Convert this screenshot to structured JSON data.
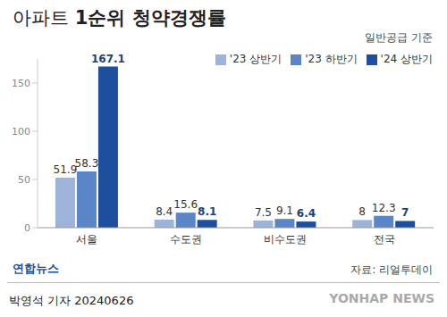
{
  "chart_data": {
    "type": "bar",
    "title": "아파트 1순위 청약경쟁률",
    "subtitle": "일반공급 기준",
    "categories": [
      "서울",
      "수도권",
      "비수도권",
      "전국"
    ],
    "series": [
      {
        "name": "'23 상반기",
        "color": "#9db3d9",
        "values": [
          51.9,
          8.4,
          7.5,
          8.0
        ]
      },
      {
        "name": "'23 하반기",
        "color": "#5a86c8",
        "values": [
          58.3,
          15.6,
          9.1,
          12.3
        ]
      },
      {
        "name": "'24 상반기",
        "color": "#1d4f9e",
        "values": [
          167.1,
          8.1,
          6.4,
          7.0
        ]
      }
    ],
    "ylim": [
      0,
      175
    ],
    "yticks": [
      0,
      50,
      100,
      150
    ],
    "grid": false,
    "legend": "top-right",
    "data_labels": true,
    "source": "자료: 리얼투데이",
    "annotations": [
      "연합뉴스",
      "박영석 기자 20240626",
      "YONHAP NEWS"
    ]
  }
}
